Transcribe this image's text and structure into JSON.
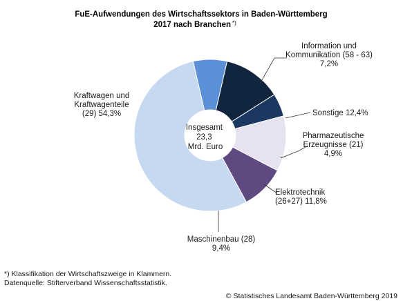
{
  "chart_data": {
    "type": "pie",
    "variant": "donut",
    "title_line1": "FuE-Aufwendungen des Wirtschaftssektors in Baden-Württemberg",
    "title_line2": "2017 nach  Branchen",
    "title_sup": "*)",
    "center_label": [
      "Insgesamt",
      "23,3",
      "Mrd. Euro"
    ],
    "slices": [
      {
        "name": "Information und Kommunikation (58 - 63)",
        "value": 7.2,
        "color": "#5b8fd6",
        "label_lines": [
          "Information und",
          "Kommunikation (58 - 63)",
          "7,2%"
        ]
      },
      {
        "name": "Sonstige",
        "value": 12.4,
        "color": "#11253f",
        "label_lines": [
          "Sonstige 12,4%"
        ]
      },
      {
        "name": "Pharmazeutische Erzeugnisse (21)",
        "value": 4.9,
        "color": "#1b3860",
        "label_lines": [
          "Pharmazeutische",
          "Erzeugnisse (21)",
          "4,9%"
        ]
      },
      {
        "name": "Elektrotechnik (26+27)",
        "value": 11.8,
        "color": "#e6e2f0",
        "label_lines": [
          "Elektrotechnik",
          "(26+27) 11,8%"
        ]
      },
      {
        "name": "Maschinenbau (28)",
        "value": 9.4,
        "color": "#5e4a80",
        "label_lines": [
          "Maschinenbau (28)",
          "9,4%"
        ]
      },
      {
        "name": "Kraftwagen und Kraftwagenteile (29)",
        "value": 54.3,
        "color": "#c7d8f1",
        "label_lines": [
          "Kraftwagen und",
          "Kraftwagenteile",
          "(29) 54,3%"
        ]
      }
    ]
  },
  "footer": {
    "note": "*) Klassifikation der Wirtschaftszweige in Klammern.",
    "source": "Datenquelle: Stifterverband Wissenschaftsstatistik.",
    "copyright": "© Statistisches Landesamt Baden-Württemberg 2019"
  }
}
